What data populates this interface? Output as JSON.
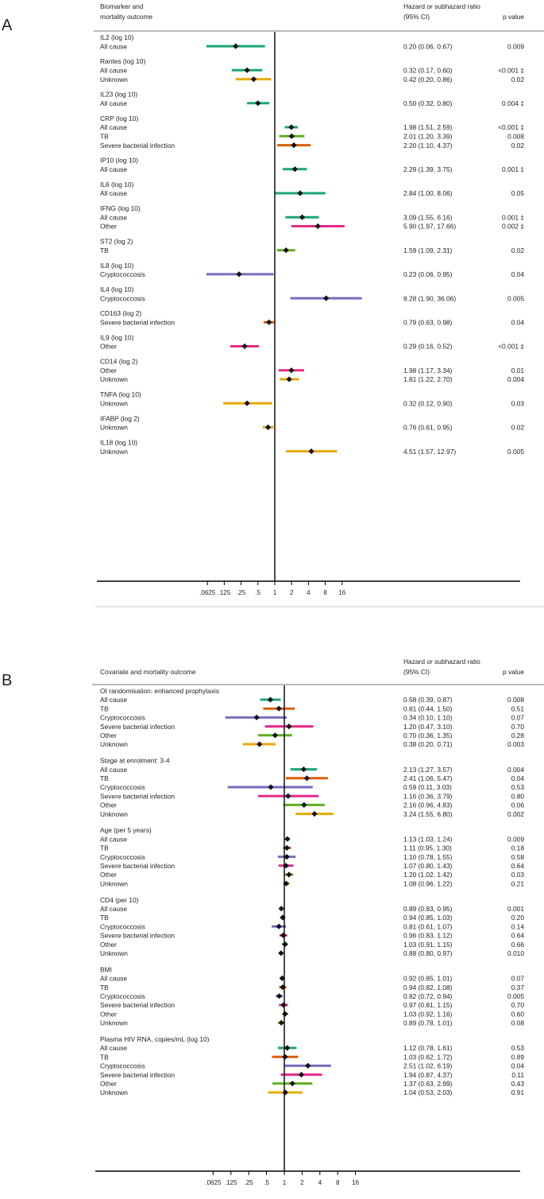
{
  "colors": {
    "All cause": "#1aa57c",
    "TB": "#d95f02",
    "Cryptococcosis": "#7b6cc0",
    "Severe bacterial infection": "#e7298a",
    "Other": "#5fae1f",
    "Unknown": "#e6ab02",
    "marker": "#111111"
  },
  "chart_data": [
    {
      "type": "forest",
      "panel": "A",
      "header_label": [
        "Biomarker and",
        "mortality outcome"
      ],
      "header_ratio": [
        "Hazard or subhazard ratio",
        "(95% CI)"
      ],
      "header_p": "p value",
      "x_scale": "log2",
      "xlim": [
        0.05,
        20
      ],
      "ticks": [
        ".0625",
        ".125",
        ".25",
        ".5",
        "1",
        "2",
        "4",
        "8",
        "16"
      ],
      "groups": [
        {
          "label": "IL2 (log 10)",
          "rows": [
            {
              "outcome": "All cause",
              "est": 0.2,
              "lo": 0.06,
              "hi": 0.67,
              "text": "0.20 (0.06, 0.67)",
              "p": "0.009"
            }
          ]
        },
        {
          "label": "Rantes (log 10)",
          "rows": [
            {
              "outcome": "All cause",
              "est": 0.32,
              "lo": 0.17,
              "hi": 0.6,
              "text": "0.32 (0.17, 0.60)",
              "p": "<0.001 ‡"
            },
            {
              "outcome": "Unknown",
              "est": 0.42,
              "lo": 0.2,
              "hi": 0.86,
              "text": "0.42 (0.20, 0.86)",
              "p": "0.02"
            }
          ]
        },
        {
          "label": "IL23 (log 10)",
          "rows": [
            {
              "outcome": "All cause",
              "est": 0.5,
              "lo": 0.32,
              "hi": 0.8,
              "text": "0.50 (0.32, 0.80)",
              "p": "0.004 ‡"
            }
          ]
        },
        {
          "label": "CRP (log 10)",
          "rows": [
            {
              "outcome": "All cause",
              "est": 1.98,
              "lo": 1.51,
              "hi": 2.59,
              "text": "1.98 (1.51, 2.59)",
              "p": "<0.001 ‡"
            },
            {
              "outcome": "TB",
              "est": 2.01,
              "lo": 1.2,
              "hi": 3.39,
              "text": "2.01 (1.20, 3.39)",
              "p": "0.008",
              "color_key": "Other"
            },
            {
              "outcome": "Severe bacterial infection",
              "est": 2.2,
              "lo": 1.1,
              "hi": 4.37,
              "text": "2.20 (1.10, 4.37)",
              "p": "0.02",
              "color_key": "TB"
            }
          ]
        },
        {
          "label": "IP10 (log 10)",
          "rows": [
            {
              "outcome": "All cause",
              "est": 2.29,
              "lo": 1.39,
              "hi": 3.75,
              "text": "2.29 (1.39, 3.75)",
              "p": "0.001 ‡"
            }
          ]
        },
        {
          "label": "IL6 (log 10)",
          "rows": [
            {
              "outcome": "All cause",
              "est": 2.84,
              "lo": 1.0,
              "hi": 8.06,
              "text": "2.84 (1.00, 8.06)",
              "p": "0.05"
            }
          ]
        },
        {
          "label": "IFNG (log 10)",
          "rows": [
            {
              "outcome": "All cause",
              "est": 3.09,
              "lo": 1.55,
              "hi": 6.16,
              "text": "3.09 (1.55, 6.16)",
              "p": "0.001 ‡"
            },
            {
              "outcome": "Other",
              "est": 5.9,
              "lo": 1.97,
              "hi": 17.66,
              "text": "5.90 (1.97, 17.66)",
              "p": "0.002 ‡",
              "color_key": "Severe bacterial infection"
            }
          ]
        },
        {
          "label": "ST2 (log 2)",
          "rows": [
            {
              "outcome": "TB",
              "est": 1.59,
              "lo": 1.09,
              "hi": 2.31,
              "text": "1.59 (1.09, 2.31)",
              "p": "0.02",
              "color_key": "Other"
            }
          ]
        },
        {
          "label": "IL8 (log 10)",
          "rows": [
            {
              "outcome": "Cryptococcosis",
              "est": 0.23,
              "lo": 0.06,
              "hi": 0.95,
              "text": "0.23 (0.06, 0.95)",
              "p": "0.04"
            }
          ]
        },
        {
          "label": "IL4 (log 10)",
          "rows": [
            {
              "outcome": "Cryptococcosis",
              "est": 8.28,
              "lo": 1.9,
              "hi": 36.06,
              "text": "8.28 (1.90, 36.06)",
              "p": "0.005"
            }
          ]
        },
        {
          "label": "CD163 (log 2)",
          "rows": [
            {
              "outcome": "Severe bacterial infection",
              "est": 0.79,
              "lo": 0.63,
              "hi": 0.98,
              "text": "0.79 (0.63, 0.98)",
              "p": "0.04",
              "color_key": "TB"
            }
          ]
        },
        {
          "label": "IL9 (log 10)",
          "rows": [
            {
              "outcome": "Other",
              "est": 0.29,
              "lo": 0.16,
              "hi": 0.52,
              "text": "0.29 (0.16, 0.52)",
              "p": "<0.001 ‡",
              "color_key": "Severe bacterial infection"
            }
          ]
        },
        {
          "label": "CD14 (log 2)",
          "rows": [
            {
              "outcome": "Other",
              "est": 1.98,
              "lo": 1.17,
              "hi": 3.34,
              "text": "1.98 (1.17, 3.34)",
              "p": "0.01",
              "color_key": "Severe bacterial infection"
            },
            {
              "outcome": "Unknown",
              "est": 1.81,
              "lo": 1.22,
              "hi": 2.7,
              "text": "1.81 (1.22, 2.70)",
              "p": "0.004"
            }
          ]
        },
        {
          "label": "TNFA (log 10)",
          "rows": [
            {
              "outcome": "Unknown",
              "est": 0.32,
              "lo": 0.12,
              "hi": 0.9,
              "text": "0.32 (0.12, 0.90)",
              "p": "0.03"
            }
          ]
        },
        {
          "label": "IFABP (log 2)",
          "rows": [
            {
              "outcome": "Unknown",
              "est": 0.76,
              "lo": 0.61,
              "hi": 0.95,
              "text": "0.76 (0.61, 0.95)",
              "p": "0.02"
            }
          ]
        },
        {
          "label": "IL18 (log 10)",
          "rows": [
            {
              "outcome": "Unknown",
              "est": 4.51,
              "lo": 1.57,
              "hi": 12.97,
              "text": "4.51 (1.57, 12.97)",
              "p": "0.005"
            }
          ]
        }
      ]
    },
    {
      "type": "forest",
      "panel": "B",
      "header_label": [
        "Covariate and mortality outcome"
      ],
      "header_ratio": [
        "Hazard or subhazard ratio",
        "(95% CI)"
      ],
      "header_p": "p value",
      "x_scale": "log2",
      "xlim": [
        0.05,
        20
      ],
      "ticks": [
        ".0625",
        ".125",
        ".25",
        ".5",
        "1",
        "2",
        "4",
        "8",
        "16"
      ],
      "groups": [
        {
          "label": "OI randomisation: enhanced prophylaxis",
          "rows": [
            {
              "outcome": "All cause",
              "est": 0.58,
              "lo": 0.39,
              "hi": 0.87,
              "text": "0.58 (0.39, 0.87)",
              "p": "0.008"
            },
            {
              "outcome": "TB",
              "est": 0.81,
              "lo": 0.44,
              "hi": 1.5,
              "text": "0.81 (0.44, 1.50)",
              "p": "0.51"
            },
            {
              "outcome": "Cryptococcosis",
              "est": 0.34,
              "lo": 0.1,
              "hi": 1.1,
              "text": "0.34 (0.10, 1.10)",
              "p": "0.07"
            },
            {
              "outcome": "Severe bacterial infection",
              "est": 1.2,
              "lo": 0.47,
              "hi": 3.1,
              "text": "1.20 (0.47, 3.10)",
              "p": "0.70"
            },
            {
              "outcome": "Other",
              "est": 0.7,
              "lo": 0.36,
              "hi": 1.35,
              "text": "0.70 (0.36, 1.35)",
              "p": "0.28"
            },
            {
              "outcome": "Unknown",
              "est": 0.38,
              "lo": 0.2,
              "hi": 0.71,
              "text": "0.38 (0.20, 0.71)",
              "p": "0.003"
            }
          ]
        },
        {
          "label": "Stage at enrolment: 3-4",
          "rows": [
            {
              "outcome": "All cause",
              "est": 2.13,
              "lo": 1.27,
              "hi": 3.57,
              "text": "2.13 (1.27, 3.57)",
              "p": "0.004"
            },
            {
              "outcome": "TB",
              "est": 2.41,
              "lo": 1.06,
              "hi": 5.47,
              "text": "2.41 (1.06, 5.47)",
              "p": "0.04"
            },
            {
              "outcome": "Cryptococcosis",
              "est": 0.59,
              "lo": 0.11,
              "hi": 3.03,
              "text": "0.59 (0.11, 3.03)",
              "p": "0.53"
            },
            {
              "outcome": "Severe bacterial infection",
              "est": 1.16,
              "lo": 0.36,
              "hi": 3.79,
              "text": "1.16 (0.36, 3.79)",
              "p": "0.80"
            },
            {
              "outcome": "Other",
              "est": 2.16,
              "lo": 0.96,
              "hi": 4.83,
              "text": "2.16 (0.96, 4.83)",
              "p": "0.06"
            },
            {
              "outcome": "Unknown",
              "est": 3.24,
              "lo": 1.55,
              "hi": 6.8,
              "text": "3.24 (1.55, 6.80)",
              "p": "0.002"
            }
          ]
        },
        {
          "label": "Age (per 5 years)",
          "rows": [
            {
              "outcome": "All cause",
              "est": 1.13,
              "lo": 1.03,
              "hi": 1.24,
              "text": "1.13 (1.03, 1.24)",
              "p": "0.009"
            },
            {
              "outcome": "TB",
              "est": 1.11,
              "lo": 0.95,
              "hi": 1.3,
              "text": "1.11 (0.95, 1.30)",
              "p": "0.18"
            },
            {
              "outcome": "Cryptococcosis",
              "est": 1.1,
              "lo": 0.78,
              "hi": 1.55,
              "text": "1.10 (0.78, 1.55)",
              "p": "0.58"
            },
            {
              "outcome": "Severe bacterial infection",
              "est": 1.07,
              "lo": 0.8,
              "hi": 1.43,
              "text": "1.07 (0.80, 1.43)",
              "p": "0.64"
            },
            {
              "outcome": "Other",
              "est": 1.2,
              "lo": 1.02,
              "hi": 1.42,
              "text": "1.20 (1.02, 1.42)",
              "p": "0.03"
            },
            {
              "outcome": "Unknown",
              "est": 1.08,
              "lo": 0.96,
              "hi": 1.22,
              "text": "1.08 (0.96, 1.22)",
              "p": "0.21"
            }
          ]
        },
        {
          "label": "CD4 (per 10)",
          "rows": [
            {
              "outcome": "All cause",
              "est": 0.89,
              "lo": 0.83,
              "hi": 0.95,
              "text": "0.89 (0.83, 0.95)",
              "p": "0.001"
            },
            {
              "outcome": "TB",
              "est": 0.94,
              "lo": 0.85,
              "hi": 1.03,
              "text": "0.94 (0.85, 1.03)",
              "p": "0.20"
            },
            {
              "outcome": "Cryptococcosis",
              "est": 0.81,
              "lo": 0.61,
              "hi": 1.07,
              "text": "0.81 (0.61, 1.07)",
              "p": "0.14"
            },
            {
              "outcome": "Severe bacterial infection",
              "est": 0.96,
              "lo": 0.83,
              "hi": 1.12,
              "text": "0.96 (0.83, 1.12)",
              "p": "0.64"
            },
            {
              "outcome": "Other",
              "est": 1.03,
              "lo": 0.91,
              "hi": 1.15,
              "text": "1.03 (0.91, 1.15)",
              "p": "0.66"
            },
            {
              "outcome": "Unknown",
              "est": 0.88,
              "lo": 0.8,
              "hi": 0.97,
              "text": "0.88 (0.80, 0.97)",
              "p": "0.010"
            }
          ]
        },
        {
          "label": "BMI",
          "rows": [
            {
              "outcome": "All cause",
              "est": 0.92,
              "lo": 0.85,
              "hi": 1.01,
              "text": "0.92 (0.85, 1.01)",
              "p": "0.07"
            },
            {
              "outcome": "TB",
              "est": 0.94,
              "lo": 0.82,
              "hi": 1.08,
              "text": "0.94 (0.82, 1.08)",
              "p": "0.37"
            },
            {
              "outcome": "Cryptococcosis",
              "est": 0.82,
              "lo": 0.72,
              "hi": 0.94,
              "text": "0.82 (0.72, 0.94)",
              "p": "0.005"
            },
            {
              "outcome": "Severe bacterial infection",
              "est": 0.97,
              "lo": 0.81,
              "hi": 1.15,
              "text": "0.97 (0.81, 1.15)",
              "p": "0.70"
            },
            {
              "outcome": "Other",
              "est": 1.03,
              "lo": 0.92,
              "hi": 1.16,
              "text": "1.03 (0.92, 1.16)",
              "p": "0.60"
            },
            {
              "outcome": "Unknown",
              "est": 0.89,
              "lo": 0.78,
              "hi": 1.01,
              "text": "0.89 (0.78, 1.01)",
              "p": "0.08"
            }
          ]
        },
        {
          "label": "Plasma HIV RNA, copies/mL (log 10)",
          "rows": [
            {
              "outcome": "All cause",
              "est": 1.12,
              "lo": 0.78,
              "hi": 1.61,
              "text": "1.12 (0.78, 1.61)",
              "p": "0.53"
            },
            {
              "outcome": "TB",
              "est": 1.03,
              "lo": 0.62,
              "hi": 1.72,
              "text": "1.03 (0.62, 1.72)",
              "p": "0.89"
            },
            {
              "outcome": "Cryptococcosis",
              "est": 2.51,
              "lo": 1.02,
              "hi": 6.19,
              "text": "2.51 (1.02, 6.19)",
              "p": "0.04"
            },
            {
              "outcome": "Severe bacterial infection",
              "est": 1.94,
              "lo": 0.87,
              "hi": 4.37,
              "text": "1.94 (0.87, 4.37)",
              "p": "0.11"
            },
            {
              "outcome": "Other",
              "est": 1.37,
              "lo": 0.63,
              "hi": 2.99,
              "text": "1.37 (0.63, 2.99)",
              "p": "0.43"
            },
            {
              "outcome": "Unknown",
              "est": 1.04,
              "lo": 0.53,
              "hi": 2.03,
              "text": "1.04 (0.53, 2.03)",
              "p": "0.91"
            }
          ]
        }
      ]
    }
  ]
}
